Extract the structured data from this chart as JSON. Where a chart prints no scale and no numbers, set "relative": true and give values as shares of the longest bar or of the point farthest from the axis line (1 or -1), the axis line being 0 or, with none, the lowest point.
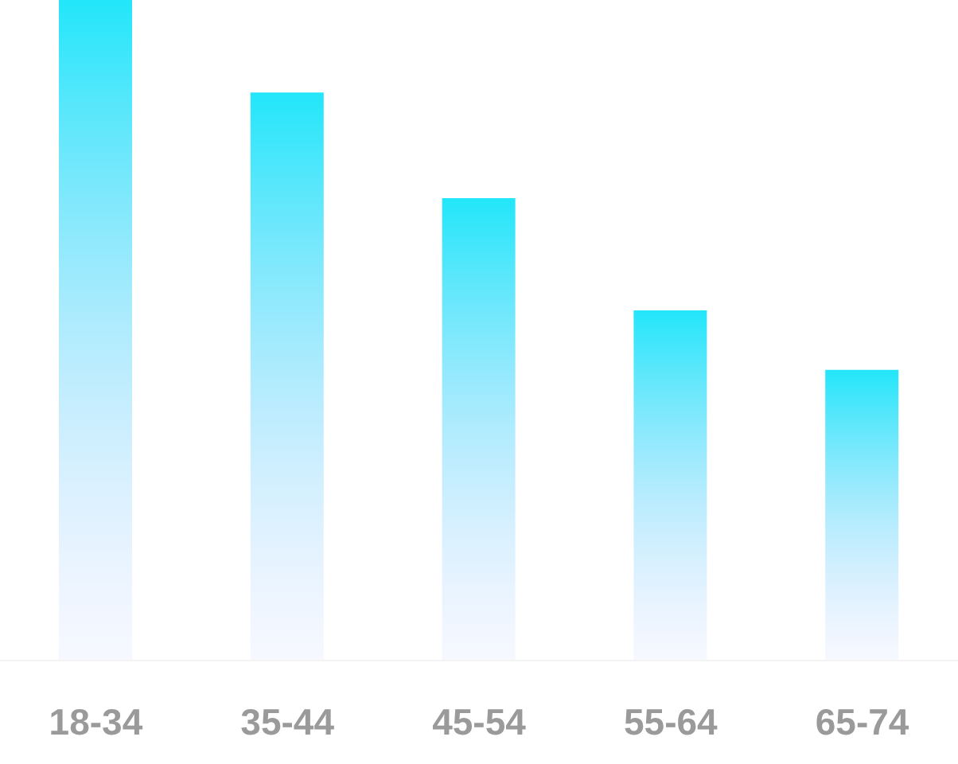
{
  "chart_data": {
    "type": "bar",
    "relative": true,
    "categories": [
      "18-34",
      "35-44",
      "45-54",
      "55-64",
      "65-74"
    ],
    "series": [
      {
        "color": "#22e6fa",
        "values": [
          1,
          0.86,
          0.7,
          0.53,
          0.44
        ]
      }
    ]
  }
}
